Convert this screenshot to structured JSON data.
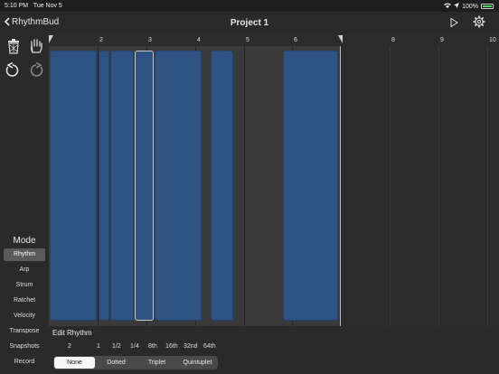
{
  "status": {
    "time": "5:10 PM",
    "date": "Tue Nov 5",
    "battery": "100%"
  },
  "nav": {
    "back_label": "RhythmBud",
    "title": "Project 1",
    "icons": [
      "chevron-left-icon",
      "play-icon",
      "gear-icon"
    ]
  },
  "sidebar": {
    "tools": [
      "trash-icon",
      "hand-icon",
      "undo-icon",
      "redo-icon"
    ],
    "mode_title": "Mode",
    "modes": [
      {
        "label": "Rhythm",
        "active": true
      },
      {
        "label": "Arp",
        "active": false
      },
      {
        "label": "Strum",
        "active": false
      },
      {
        "label": "Ratchet",
        "active": false
      },
      {
        "label": "Velocity",
        "active": false
      },
      {
        "label": "Transpose",
        "active": false
      },
      {
        "label": "Snapshots",
        "active": false
      },
      {
        "label": "Record",
        "active": false
      }
    ]
  },
  "ruler": {
    "labels": [
      "2",
      "3",
      "4",
      "5",
      "6",
      "8",
      "9",
      "10"
    ],
    "loop_end_bar": 7
  },
  "timeline": {
    "notes": [
      {
        "start": 1.0,
        "end": 1.98,
        "selected": false
      },
      {
        "start": 2.0,
        "end": 2.25,
        "selected": false
      },
      {
        "start": 2.25,
        "end": 2.75,
        "selected": false
      },
      {
        "start": 2.75,
        "end": 3.15,
        "selected": true
      },
      {
        "start": 3.15,
        "end": 4.15,
        "selected": false
      },
      {
        "start": 4.3,
        "end": 4.8,
        "selected": false
      },
      {
        "start": 5.8,
        "end": 6.95,
        "selected": false
      }
    ]
  },
  "edit": {
    "title": "Edit Rhythm",
    "durations": [
      "2",
      "1",
      "1/2",
      "1/4",
      "8th",
      "16th",
      "32nd",
      "64th"
    ],
    "modifiers": [
      {
        "label": "None",
        "active": true
      },
      {
        "label": "Dotted",
        "active": false
      },
      {
        "label": "Triplet",
        "active": false
      },
      {
        "label": "Quintuplet",
        "active": false
      }
    ]
  }
}
